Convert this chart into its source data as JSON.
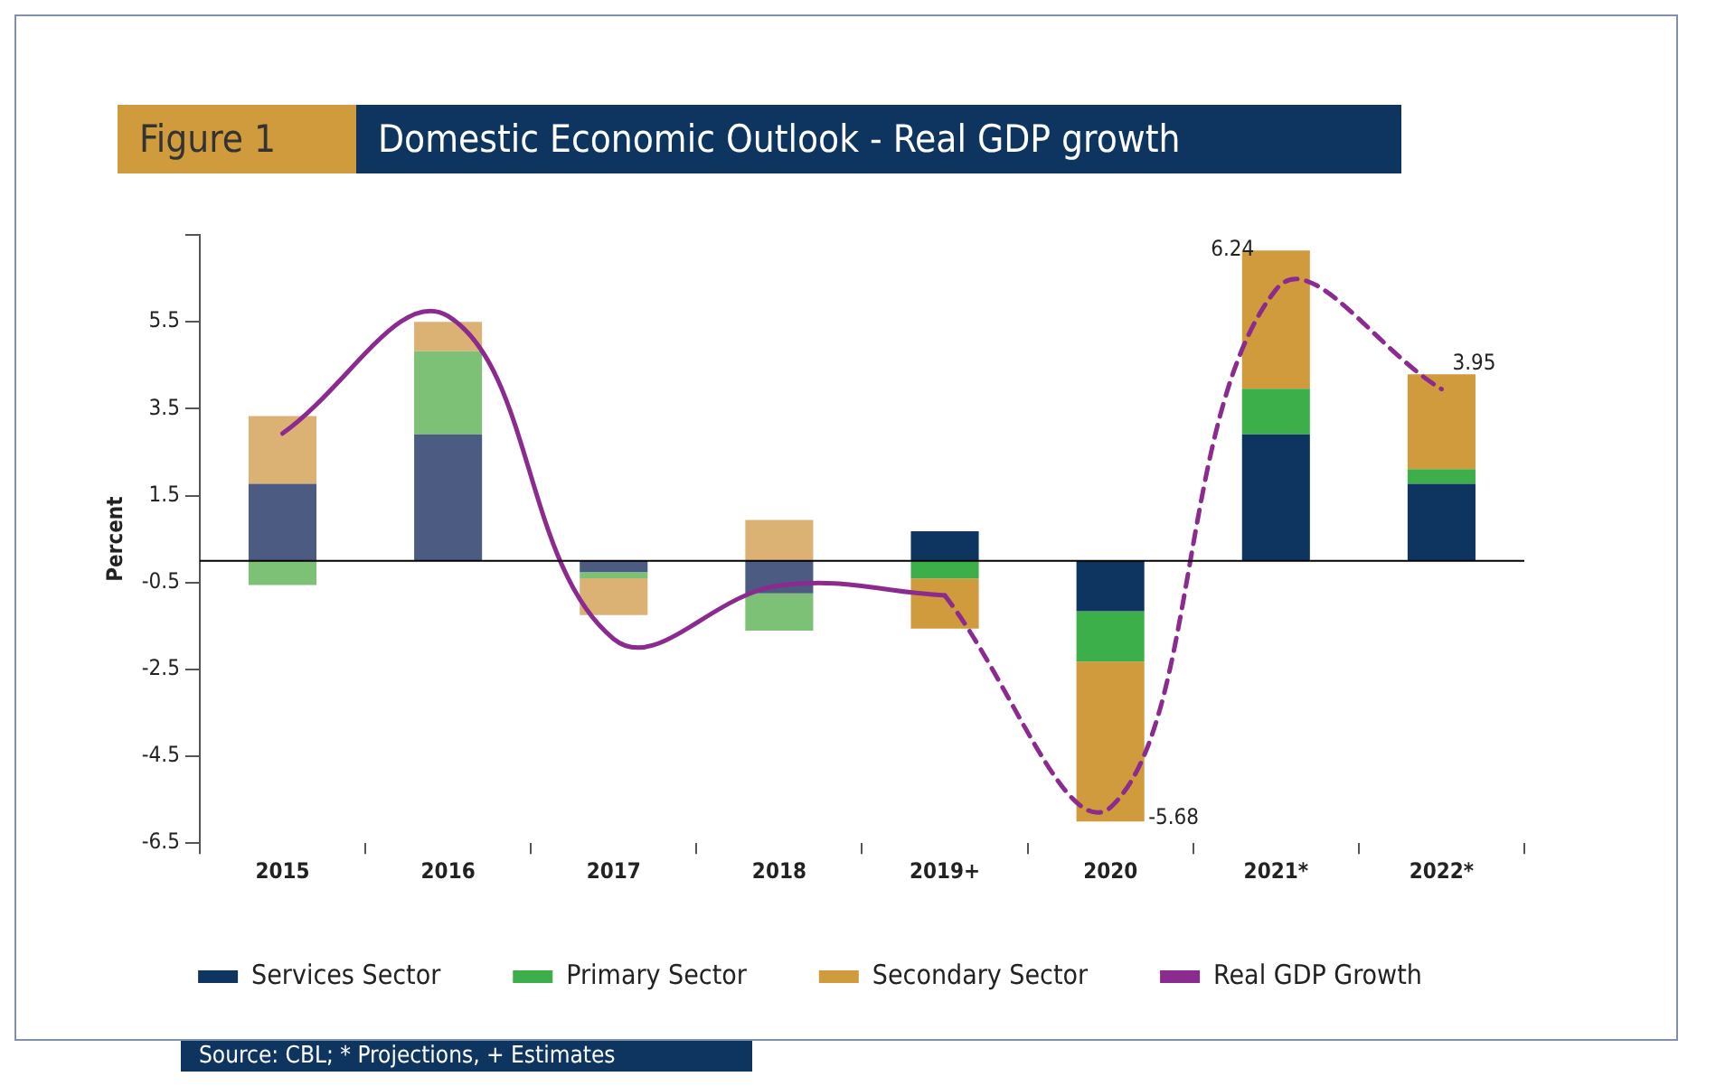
{
  "chart_data": {
    "type": "bar",
    "title": "Domestic Economic Outlook - Real GDP growth",
    "ylabel": "Percent",
    "annotations": [
      "Figure 1",
      "Source: CBL; * Projections, + Estimates"
    ],
    "categories": [
      "2015",
      "2016",
      "2017",
      "2018",
      "2019+",
      "2020",
      "2021*",
      "2022*"
    ],
    "stacked": true,
    "series": [
      {
        "name": "Services Sector",
        "color": "#0d3560",
        "colors": [
          "#4b5b82",
          "#4b5b82",
          "#4b5b82",
          "#4b5b82",
          "#0d3560",
          "#0d3560",
          "#0d3560",
          "#0d3560"
        ],
        "values": [
          1.77,
          2.91,
          -0.26,
          -0.75,
          0.68,
          -1.16,
          2.91,
          1.77
        ]
      },
      {
        "name": "Primary Sector",
        "color": "#3daf4a",
        "colors": [
          "#7dc176",
          "#7dc176",
          "#7dc176",
          "#7dc176",
          "#3daf4a",
          "#3daf4a",
          "#3daf4a",
          "#3daf4a"
        ],
        "values": [
          -0.56,
          1.91,
          -0.14,
          -0.86,
          -0.41,
          -1.16,
          1.05,
          0.34
        ]
      },
      {
        "name": "Secondary Sector",
        "color": "#d09b3c",
        "colors": [
          "#dcb274",
          "#dcb274",
          "#dcb274",
          "#dcb274",
          "#d09b3c",
          "#d09b3c",
          "#d09b3c",
          "#d09b3c"
        ],
        "values": [
          1.56,
          0.68,
          -0.85,
          0.94,
          -1.15,
          -3.68,
          3.18,
          2.18
        ]
      },
      {
        "name": "Real GDP Growth",
        "type": "line",
        "color": "#8b2a8f",
        "line_style": "solid",
        "values": [
          2.93,
          5.63,
          -1.8,
          -0.57,
          -0.8,
          null,
          null,
          null
        ]
      },
      {
        "type": "line",
        "color": "#8b2a8f",
        "line_style": "dashed",
        "values": [
          null,
          null,
          null,
          null,
          -0.8,
          -5.68,
          6.24,
          3.95
        ],
        "value_labels": [
          null,
          null,
          null,
          null,
          null,
          "-5.68",
          "6.24",
          "3.95"
        ]
      }
    ],
    "ylim": [
      -6.5,
      7.5
    ],
    "yticks": [
      {
        "value": 7.5,
        "label": null
      },
      5.5,
      3.5,
      1.5,
      -0.5,
      -2.5,
      -4.5,
      -6.5
    ],
    "ref_lines": [
      {
        "axis": "y",
        "value": 0,
        "color": "#000000"
      }
    ],
    "grid": false,
    "legend": "bottom",
    "marker": "none"
  }
}
